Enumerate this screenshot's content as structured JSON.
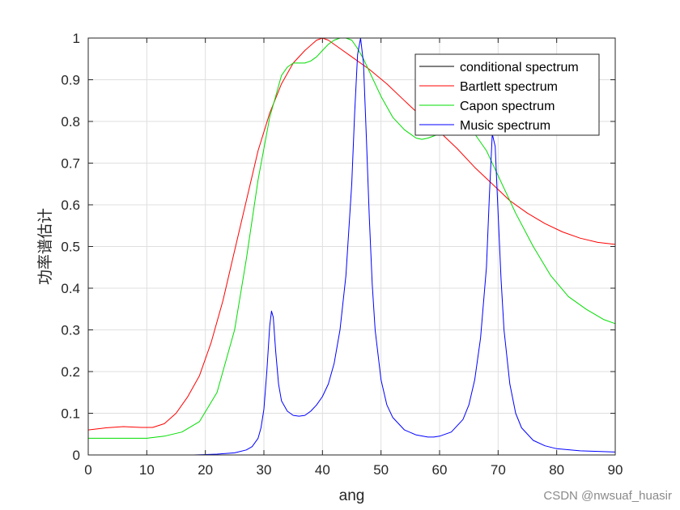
{
  "chart_data": {
    "type": "line",
    "xlabel": "ang",
    "ylabel": "功率谱估计",
    "xlim": [
      0,
      90
    ],
    "ylim": [
      0,
      1
    ],
    "xticks": [
      0,
      10,
      20,
      30,
      40,
      50,
      60,
      70,
      80,
      90
    ],
    "yticks": [
      0,
      0.1,
      0.2,
      0.3,
      0.4,
      0.5,
      0.6,
      0.7,
      0.8,
      0.9,
      1
    ],
    "xtick_labels": [
      "0",
      "10",
      "20",
      "30",
      "40",
      "50",
      "60",
      "70",
      "80",
      "90"
    ],
    "ytick_labels": [
      "0",
      "0.1",
      "0.2",
      "0.3",
      "0.4",
      "0.5",
      "0.6",
      "0.7",
      "0.8",
      "0.9",
      "1"
    ],
    "grid": true,
    "legend_position": "top-right",
    "series": [
      {
        "name": "conditional spectrum",
        "color": "#000000",
        "x": [],
        "y": []
      },
      {
        "name": "Bartlett spectrum",
        "color": "#ff0000",
        "x": [
          0,
          3,
          6,
          9,
          11,
          13,
          15,
          17,
          19,
          21,
          23,
          25,
          27,
          29,
          31,
          33,
          35,
          37,
          39,
          40,
          41,
          43,
          45,
          48,
          51,
          54,
          57,
          60,
          63,
          66,
          69,
          72,
          75,
          78,
          81,
          84,
          87,
          90
        ],
        "y": [
          0.06,
          0.065,
          0.068,
          0.066,
          0.066,
          0.075,
          0.1,
          0.14,
          0.19,
          0.27,
          0.37,
          0.49,
          0.61,
          0.73,
          0.82,
          0.89,
          0.94,
          0.97,
          0.995,
          1.0,
          0.995,
          0.975,
          0.955,
          0.925,
          0.89,
          0.85,
          0.81,
          0.775,
          0.735,
          0.69,
          0.65,
          0.61,
          0.58,
          0.555,
          0.535,
          0.52,
          0.51,
          0.505
        ]
      },
      {
        "name": "Capon spectrum",
        "color": "#00dd00",
        "x": [
          0,
          5,
          10,
          13,
          16,
          19,
          22,
          25,
          27,
          29,
          31,
          32,
          33,
          34,
          35,
          36,
          37,
          38,
          39,
          40,
          41,
          42,
          43,
          44,
          45,
          46,
          47,
          48,
          50,
          52,
          54,
          56,
          57,
          58,
          60,
          62,
          64,
          66,
          68,
          70,
          73,
          76,
          79,
          82,
          85,
          88,
          90
        ],
        "y": [
          0.04,
          0.04,
          0.04,
          0.045,
          0.055,
          0.08,
          0.15,
          0.3,
          0.47,
          0.66,
          0.81,
          0.86,
          0.91,
          0.93,
          0.94,
          0.94,
          0.94,
          0.945,
          0.955,
          0.97,
          0.985,
          0.995,
          1.0,
          1.0,
          0.995,
          0.975,
          0.95,
          0.92,
          0.86,
          0.81,
          0.78,
          0.76,
          0.757,
          0.76,
          0.77,
          0.79,
          0.79,
          0.77,
          0.73,
          0.67,
          0.58,
          0.5,
          0.43,
          0.38,
          0.35,
          0.325,
          0.315
        ]
      },
      {
        "name": "Music spectrum",
        "color": "#0000ff",
        "x": [
          0,
          10,
          18,
          22,
          25,
          27,
          28,
          29,
          29.5,
          30,
          30.5,
          31,
          31.3,
          31.6,
          32,
          32.5,
          33,
          34,
          35,
          36,
          37,
          38,
          39,
          40,
          41,
          42,
          43,
          44,
          45,
          45.5,
          46,
          46.5,
          47,
          47.5,
          48,
          48.5,
          49,
          50,
          51,
          52,
          54,
          56,
          58,
          59,
          60,
          62,
          64,
          65,
          66,
          67,
          68,
          68.5,
          69,
          69.5,
          70,
          70.5,
          71,
          72,
          73,
          74,
          76,
          78,
          80,
          84,
          90
        ],
        "y": [
          0,
          0,
          0,
          0.002,
          0.005,
          0.012,
          0.02,
          0.04,
          0.065,
          0.11,
          0.2,
          0.31,
          0.345,
          0.33,
          0.25,
          0.17,
          0.13,
          0.105,
          0.095,
          0.093,
          0.095,
          0.105,
          0.12,
          0.14,
          0.17,
          0.22,
          0.3,
          0.43,
          0.65,
          0.82,
          0.96,
          1.0,
          0.94,
          0.76,
          0.57,
          0.41,
          0.3,
          0.18,
          0.12,
          0.09,
          0.06,
          0.048,
          0.043,
          0.043,
          0.045,
          0.055,
          0.085,
          0.12,
          0.18,
          0.28,
          0.45,
          0.62,
          0.77,
          0.74,
          0.58,
          0.42,
          0.3,
          0.17,
          0.1,
          0.065,
          0.035,
          0.022,
          0.015,
          0.01,
          0.007
        ]
      }
    ]
  },
  "watermark": "CSDN @nwsuaf_huasir"
}
